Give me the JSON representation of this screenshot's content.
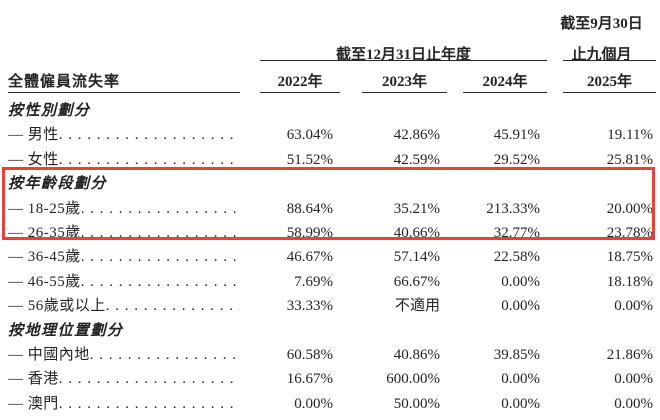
{
  "colors": {
    "highlight_box": "#e5413f",
    "text": "#262222"
  },
  "table": {
    "header": {
      "row_header": "全體僱員流失率",
      "period_group_annual": "截至12月31日止年度",
      "period_group_interim_line1": "截至9月30日",
      "period_group_interim_line2": "止九個月",
      "years": [
        "2022年",
        "2023年",
        "2024年",
        "2025年"
      ]
    },
    "sections": [
      {
        "title": "按性別劃分",
        "rows": [
          {
            "label": "— 男性",
            "values": [
              "63.04%",
              "42.86%",
              "45.91%",
              "19.11%"
            ]
          },
          {
            "label": "— 女性",
            "values": [
              "51.52%",
              "42.59%",
              "29.52%",
              "25.81%"
            ]
          }
        ]
      },
      {
        "title": "按年齡段劃分",
        "highlighted": true,
        "rows": [
          {
            "label": "— 18-25歲",
            "values": [
              "88.64%",
              "35.21%",
              "213.33%",
              "20.00%"
            ]
          },
          {
            "label": "— 26-35歲",
            "values": [
              "58.99%",
              "40.66%",
              "32.77%",
              "23.78%"
            ]
          },
          {
            "label": "— 36-45歲",
            "values": [
              "46.67%",
              "57.14%",
              "22.58%",
              "18.75%"
            ]
          },
          {
            "label": "— 46-55歲",
            "values": [
              "7.69%",
              "66.67%",
              "0.00%",
              "18.18%"
            ]
          },
          {
            "label": "— 56歲或以上",
            "values": [
              "33.33%",
              "不適用",
              "0.00%",
              "0.00%"
            ]
          }
        ]
      },
      {
        "title": "按地理位置劃分",
        "rows": [
          {
            "label": "— 中國內地",
            "values": [
              "60.58%",
              "40.86%",
              "39.85%",
              "21.86%"
            ]
          },
          {
            "label": "— 香港",
            "values": [
              "16.67%",
              "600.00%",
              "0.00%",
              "0.00%"
            ]
          },
          {
            "label": "— 澳門",
            "values": [
              "0.00%",
              "50.00%",
              "0.00%",
              "0.00%"
            ]
          }
        ]
      }
    ]
  }
}
